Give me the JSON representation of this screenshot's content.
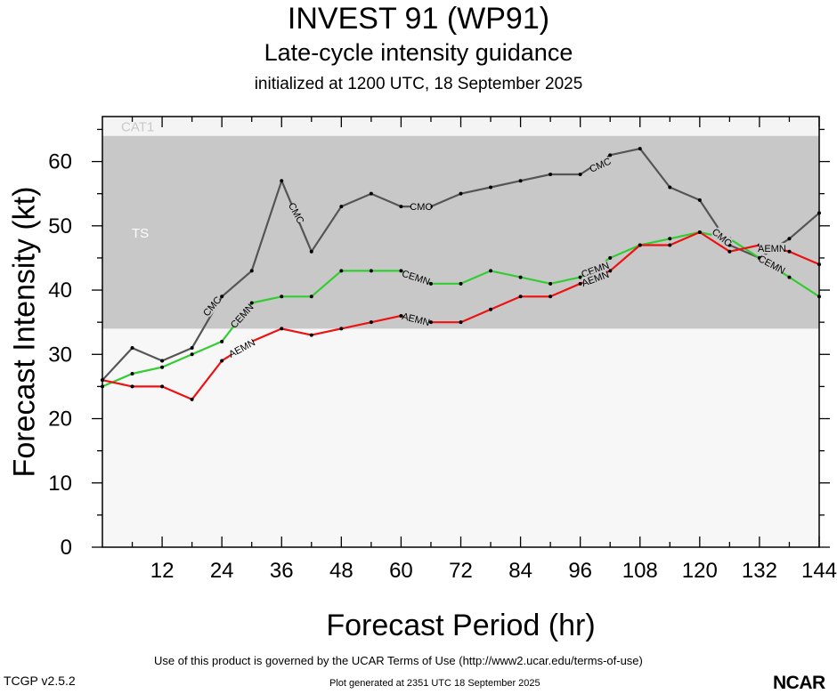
{
  "header": {
    "title": "INVEST 91 (WP91)",
    "subtitle": "Late-cycle intensity guidance",
    "init_line": "initialized at 1200 UTC, 18 September 2025"
  },
  "footer": {
    "terms": "Use of this product is governed by the UCAR Terms of Use (http://www2.ucar.edu/terms-of-use)",
    "version": "TCGP v2.5.2",
    "generated": "Plot generated at 2351 UTC   18 September 2025",
    "logo_text": "NCAR"
  },
  "chart_data": {
    "type": "line",
    "title": "INVEST 91 (WP91)",
    "subtitle": "Late-cycle intensity guidance",
    "xlabel": "Forecast Period (hr)",
    "ylabel": "Forecast Intensity (kt)",
    "xlim": [
      0,
      144
    ],
    "ylim": [
      0,
      67
    ],
    "xticks": [
      12,
      24,
      36,
      48,
      60,
      72,
      84,
      96,
      108,
      120,
      132,
      144
    ],
    "yticks": [
      0,
      10,
      20,
      30,
      40,
      50,
      60
    ],
    "grid": false,
    "bands": [
      {
        "name": "TS",
        "from": 34,
        "to": 64,
        "color": "#c8c8c8"
      },
      {
        "name": "CAT1",
        "from": 64,
        "to": 67,
        "color": "#f4f4f4"
      }
    ],
    "series": [
      {
        "name": "CMC",
        "color": "#555555",
        "x": [
          0,
          6,
          12,
          18,
          24,
          30,
          36,
          42,
          48,
          54,
          60,
          66,
          72,
          78,
          84,
          90,
          96,
          102,
          108,
          114,
          120,
          126,
          132,
          138,
          144
        ],
        "y": [
          26,
          31,
          29,
          31,
          39,
          43,
          57,
          46,
          53,
          55,
          53,
          53,
          55,
          56,
          57,
          58,
          58,
          61,
          62,
          56,
          54,
          47,
          45,
          48,
          52
        ]
      },
      {
        "name": "CEMN",
        "color": "#33cc33",
        "x": [
          0,
          6,
          12,
          18,
          24,
          30,
          36,
          42,
          48,
          54,
          60,
          66,
          72,
          78,
          84,
          90,
          96,
          102,
          108,
          114,
          120,
          126,
          132,
          138,
          144
        ],
        "y": [
          25,
          27,
          28,
          30,
          32,
          38,
          39,
          39,
          43,
          43,
          43,
          41,
          41,
          43,
          42,
          41,
          42,
          45,
          47,
          48,
          49,
          48,
          45,
          42,
          39
        ]
      },
      {
        "name": "AEMN",
        "color": "#ee1111",
        "x": [
          0,
          6,
          12,
          18,
          24,
          30,
          36,
          42,
          48,
          54,
          60,
          66,
          72,
          78,
          84,
          90,
          96,
          102,
          108,
          114,
          120,
          126,
          132,
          138,
          144
        ],
        "y": [
          26,
          25,
          25,
          23,
          29,
          32,
          34,
          33,
          34,
          35,
          36,
          35,
          35,
          37,
          39,
          39,
          41,
          43,
          47,
          47,
          49,
          46,
          47,
          46,
          44
        ]
      }
    ],
    "labels": [
      {
        "series": "CMC",
        "text": "CMC",
        "x": 22,
        "y": 37.5,
        "rot": -50
      },
      {
        "series": "CMC",
        "text": "CMC",
        "x": 39,
        "y": 52,
        "rot": 62
      },
      {
        "series": "CMC",
        "text": "CMC",
        "x": 64,
        "y": 53,
        "rot": 0
      },
      {
        "series": "CMC",
        "text": "CMC",
        "x": 100,
        "y": 59.5,
        "rot": -24
      },
      {
        "series": "CMC",
        "text": "CMC",
        "x": 124.5,
        "y": 48.2,
        "rot": 40
      },
      {
        "series": "CEMN",
        "text": "CEMN",
        "x": 28,
        "y": 36,
        "rot": -48
      },
      {
        "series": "CEMN",
        "text": "CEMN",
        "x": 63,
        "y": 42,
        "rot": 18
      },
      {
        "series": "CEMN",
        "text": "CEMN",
        "x": 99,
        "y": 43.2,
        "rot": -20
      },
      {
        "series": "CEMN",
        "text": "CEMN",
        "x": 134.5,
        "y": 44,
        "rot": 28
      },
      {
        "series": "AEMN",
        "text": "AEMN",
        "x": 28,
        "y": 31,
        "rot": -28
      },
      {
        "series": "AEMN",
        "text": "AEMN",
        "x": 63,
        "y": 35.5,
        "rot": 14
      },
      {
        "series": "AEMN",
        "text": "AEMN",
        "x": 99,
        "y": 41.8,
        "rot": -20
      },
      {
        "series": "AEMN",
        "text": "AEMN",
        "x": 134.5,
        "y": 46.5,
        "rot": 0
      }
    ]
  }
}
